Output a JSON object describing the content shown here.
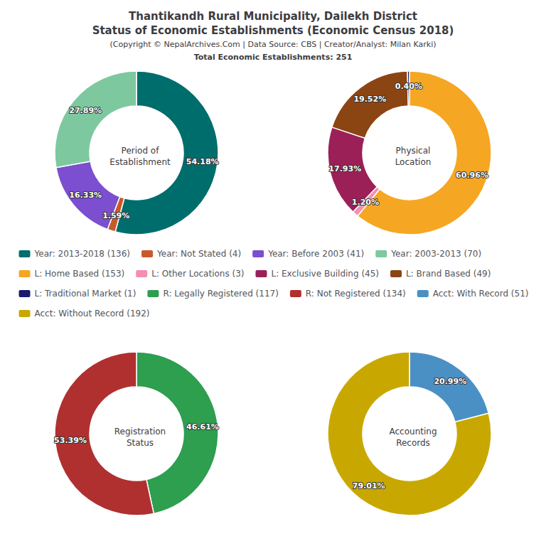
{
  "title": "Thantikandh Rural Municipality, Dailekh District\nStatus of Economic Establishments (Economic Census 2018)",
  "subtitle": "(Copyright © NepalArchives.Com | Data Source: CBS | Creator/Analyst: Milan Karki)",
  "annotations": [
    "Total Economic Establishments: 251"
  ],
  "legend": "center",
  "chart_data": [
    {
      "type": "pie",
      "title": "Period of\nEstablishment",
      "categories": [
        "Year: 2013-2018 (136)",
        "Year: Not Stated (4)",
        "Year: Before 2003 (41)",
        "Year: 2003-2013 (70)"
      ],
      "values": [
        54.18,
        1.59,
        16.33,
        27.89
      ],
      "value_labels": [
        "54.18%",
        "1.59%",
        "16.33%",
        "27.89%"
      ],
      "colors": [
        "#006d6d",
        "#c85a2a",
        "#7b4fcf",
        "#7ec8a0"
      ],
      "data_labels": true
    },
    {
      "type": "pie",
      "title": "Physical\nLocation",
      "categories": [
        "L: Home Based (153)",
        "L: Other Locations (3)",
        "L: Exclusive Building (45)",
        "L: Brand Based (49)",
        "L: Traditional Market (1)"
      ],
      "values": [
        60.96,
        1.2,
        17.93,
        19.52,
        0.4
      ],
      "value_labels": [
        "60.96%",
        "1.20%",
        "17.93%",
        "19.52%",
        "0.40%"
      ],
      "colors": [
        "#f5a623",
        "#f48fb1",
        "#9b2057",
        "#8B4513",
        "#1a1a6e"
      ],
      "data_labels": true
    },
    {
      "type": "pie",
      "title": "Registration\nStatus",
      "categories": [
        "R: Legally Registered (117)",
        "R: Not Registered (134)"
      ],
      "values": [
        46.61,
        53.39
      ],
      "value_labels": [
        "46.61%",
        "53.39%"
      ],
      "colors": [
        "#2e9e4f",
        "#b03030"
      ],
      "data_labels": true
    },
    {
      "type": "pie",
      "title": "Accounting\nRecords",
      "categories": [
        "Acct: With Record (51)",
        "Acct: Without Record (192)"
      ],
      "values": [
        20.99,
        79.01
      ],
      "value_labels": [
        "20.99%",
        "79.01%"
      ],
      "colors": [
        "#4a90c4",
        "#c8a800"
      ],
      "data_labels": true
    }
  ]
}
